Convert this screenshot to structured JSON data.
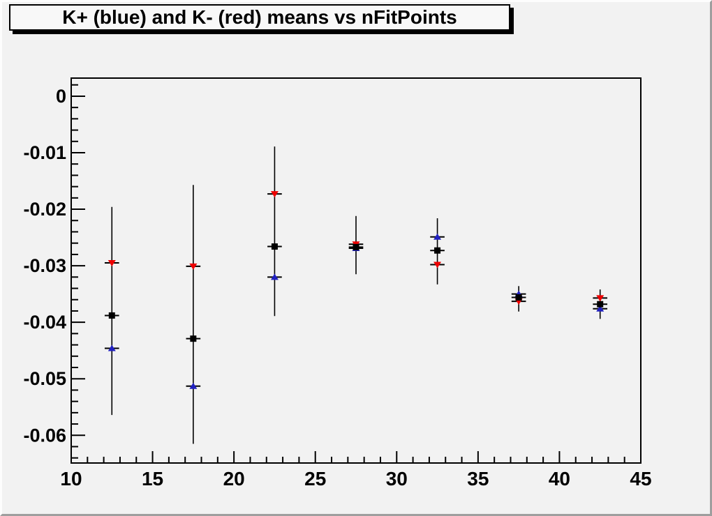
{
  "title": "K+ (blue) and K- (red) means vs nFitPoints",
  "colors": {
    "canvas_bg": "#f2f2f2",
    "frame_line": "#000000",
    "kplus_blue": "#2020c0",
    "kminus_red": "#ee0000",
    "black_marker": "#000000",
    "title_box_bg": "#f8f8f8",
    "bevel_light": "#fdfdfd",
    "bevel_dark": "#9e9e9e"
  },
  "chart_data": {
    "type": "scatter",
    "title": "K+ (blue) and K- (red) means vs nFitPoints",
    "xlabel": "",
    "ylabel": "",
    "xlim": [
      10,
      45
    ],
    "ylim": [
      -0.0649,
      0.0032
    ],
    "grid": false,
    "legend": "none (colors named in title)",
    "x_major_ticks": [
      10,
      15,
      20,
      25,
      30,
      35,
      40,
      45
    ],
    "x_tick_labels": [
      "10",
      "15",
      "20",
      "25",
      "30",
      "35",
      "40",
      "45"
    ],
    "x_minor_step": 1,
    "y_major_ticks": [
      0,
      -0.01,
      -0.02,
      -0.03,
      -0.04,
      -0.05,
      -0.06
    ],
    "y_tick_labels": [
      "0",
      "-0.01",
      "-0.02",
      "-0.03",
      "-0.04",
      "-0.05",
      "-0.06"
    ],
    "y_minor_step": 0.002,
    "x": [
      12.5,
      17.5,
      22.5,
      27.5,
      32.5,
      37.5,
      42.5
    ],
    "x_err": 0.4,
    "series": [
      {
        "name": "K+ (blue)",
        "marker": "triangle-up",
        "color": "#2020c0",
        "y": [
          -0.0446,
          -0.0513,
          -0.032,
          -0.0269,
          -0.0249,
          -0.035,
          -0.0376
        ]
      },
      {
        "name": "K- (red)",
        "marker": "triangle-down",
        "color": "#ee0000",
        "y": [
          -0.0295,
          -0.0301,
          -0.0173,
          -0.0262,
          -0.0298,
          -0.0363,
          -0.0357
        ]
      },
      {
        "name": "black squares",
        "marker": "square",
        "color": "#000000",
        "y": [
          -0.0388,
          -0.0429,
          -0.0266,
          -0.0267,
          -0.0273,
          -0.0356,
          -0.0368
        ]
      }
    ],
    "error_bars": [
      {
        "x": 12.5,
        "top": -0.0196,
        "bottom": -0.0564
      },
      {
        "x": 17.5,
        "top": -0.0157,
        "bottom": -0.0615
      },
      {
        "x": 22.5,
        "top": -0.0089,
        "bottom": -0.0389
      },
      {
        "x": 27.5,
        "top": -0.0212,
        "bottom": -0.0315
      },
      {
        "x": 32.5,
        "top": -0.0216,
        "bottom": -0.0333
      },
      {
        "x": 37.5,
        "top": -0.0336,
        "bottom": -0.0381
      },
      {
        "x": 42.5,
        "top": -0.0342,
        "bottom": -0.0394
      }
    ]
  }
}
